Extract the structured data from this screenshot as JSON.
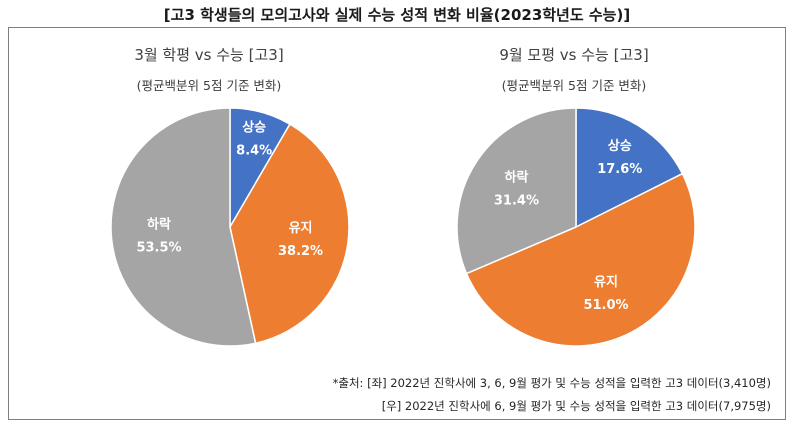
{
  "title": "[고3 학생들의 모의고사와 실제 수능 성적 변화 비율(2023학년도 수능)]",
  "colors": {
    "상승": "#4472c4",
    "유지": "#ed7d31",
    "하락": "#a5a5a5"
  },
  "chart_data": [
    {
      "type": "pie",
      "title": "3월 학평 vs 수능 [고3]",
      "subtitle": "(평균백분위 5점 기준 변화)",
      "categories": [
        "상승",
        "유지",
        "하락"
      ],
      "values": [
        8.4,
        38.2,
        53.5
      ],
      "value_labels": [
        "8.4%",
        "38.2%",
        "53.5%"
      ]
    },
    {
      "type": "pie",
      "title": "9월 모평 vs 수능 [고3]",
      "subtitle": "(평균백분위 5점 기준 변화)",
      "categories": [
        "상승",
        "유지",
        "하락"
      ],
      "values": [
        17.6,
        51.0,
        31.4
      ],
      "value_labels": [
        "17.6%",
        "51.0%",
        "31.4%"
      ]
    }
  ],
  "source": {
    "line1": "*출처: [좌] 2022년 진학사에 3, 6, 9월 평가 및 수능 성적을 입력한 고3 데이터(3,410명)",
    "line2": "[우] 2022년 진학사에 6, 9월 평가 및 수능 성적을 입력한 고3 데이터(7,975명)"
  }
}
